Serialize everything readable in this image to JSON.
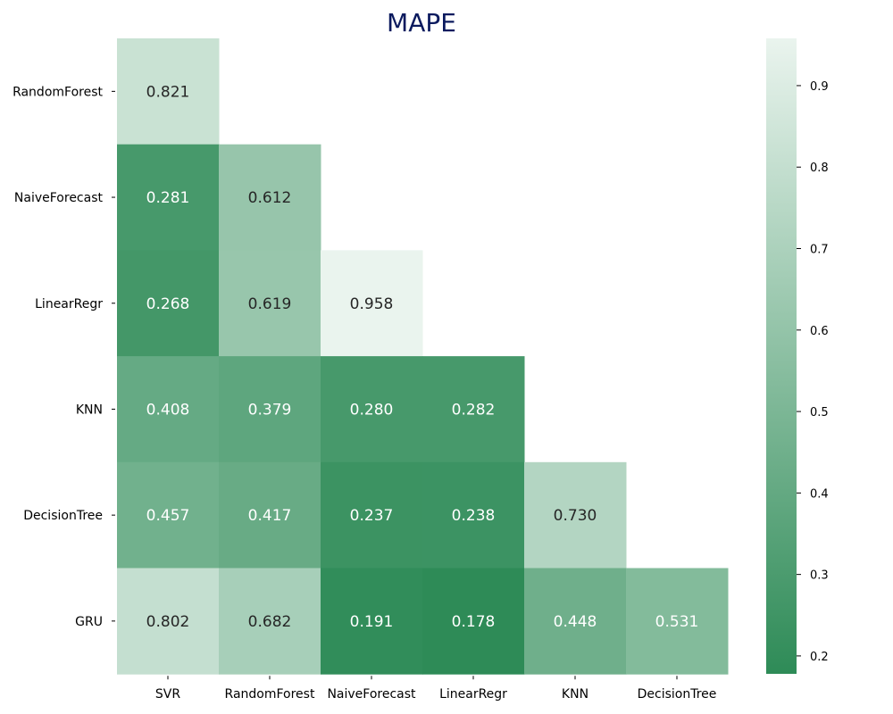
{
  "chart_data": {
    "type": "heatmap",
    "title": "MAPE",
    "rows": [
      "RandomForest",
      "NaiveForecast",
      "LinearRegr",
      "KNN",
      "DecisionTree",
      "GRU"
    ],
    "columns": [
      "SVR",
      "RandomForest",
      "NaiveForecast",
      "LinearRegr",
      "KNN",
      "DecisionTree"
    ],
    "values": [
      [
        "0.821",
        null,
        null,
        null,
        null,
        null
      ],
      [
        "0.281",
        "0.612",
        null,
        null,
        null,
        null
      ],
      [
        "0.268",
        "0.619",
        "0.958",
        null,
        null,
        null
      ],
      [
        "0.408",
        "0.379",
        "0.280",
        "0.282",
        null,
        null
      ],
      [
        "0.457",
        "0.417",
        "0.237",
        "0.238",
        "0.730",
        null
      ],
      [
        "0.802",
        "0.682",
        "0.191",
        "0.178",
        "0.448",
        "0.531"
      ]
    ],
    "mask": "upper-triangle",
    "colorbar": {
      "min": 0.178,
      "max": 0.958,
      "ticks": [
        "0.2",
        "0.3",
        "0.4",
        "0.5",
        "0.6",
        "0.7",
        "0.8",
        "0.9"
      ],
      "low_color": "#2e8b57",
      "high_color": "#eaf4ee"
    }
  }
}
